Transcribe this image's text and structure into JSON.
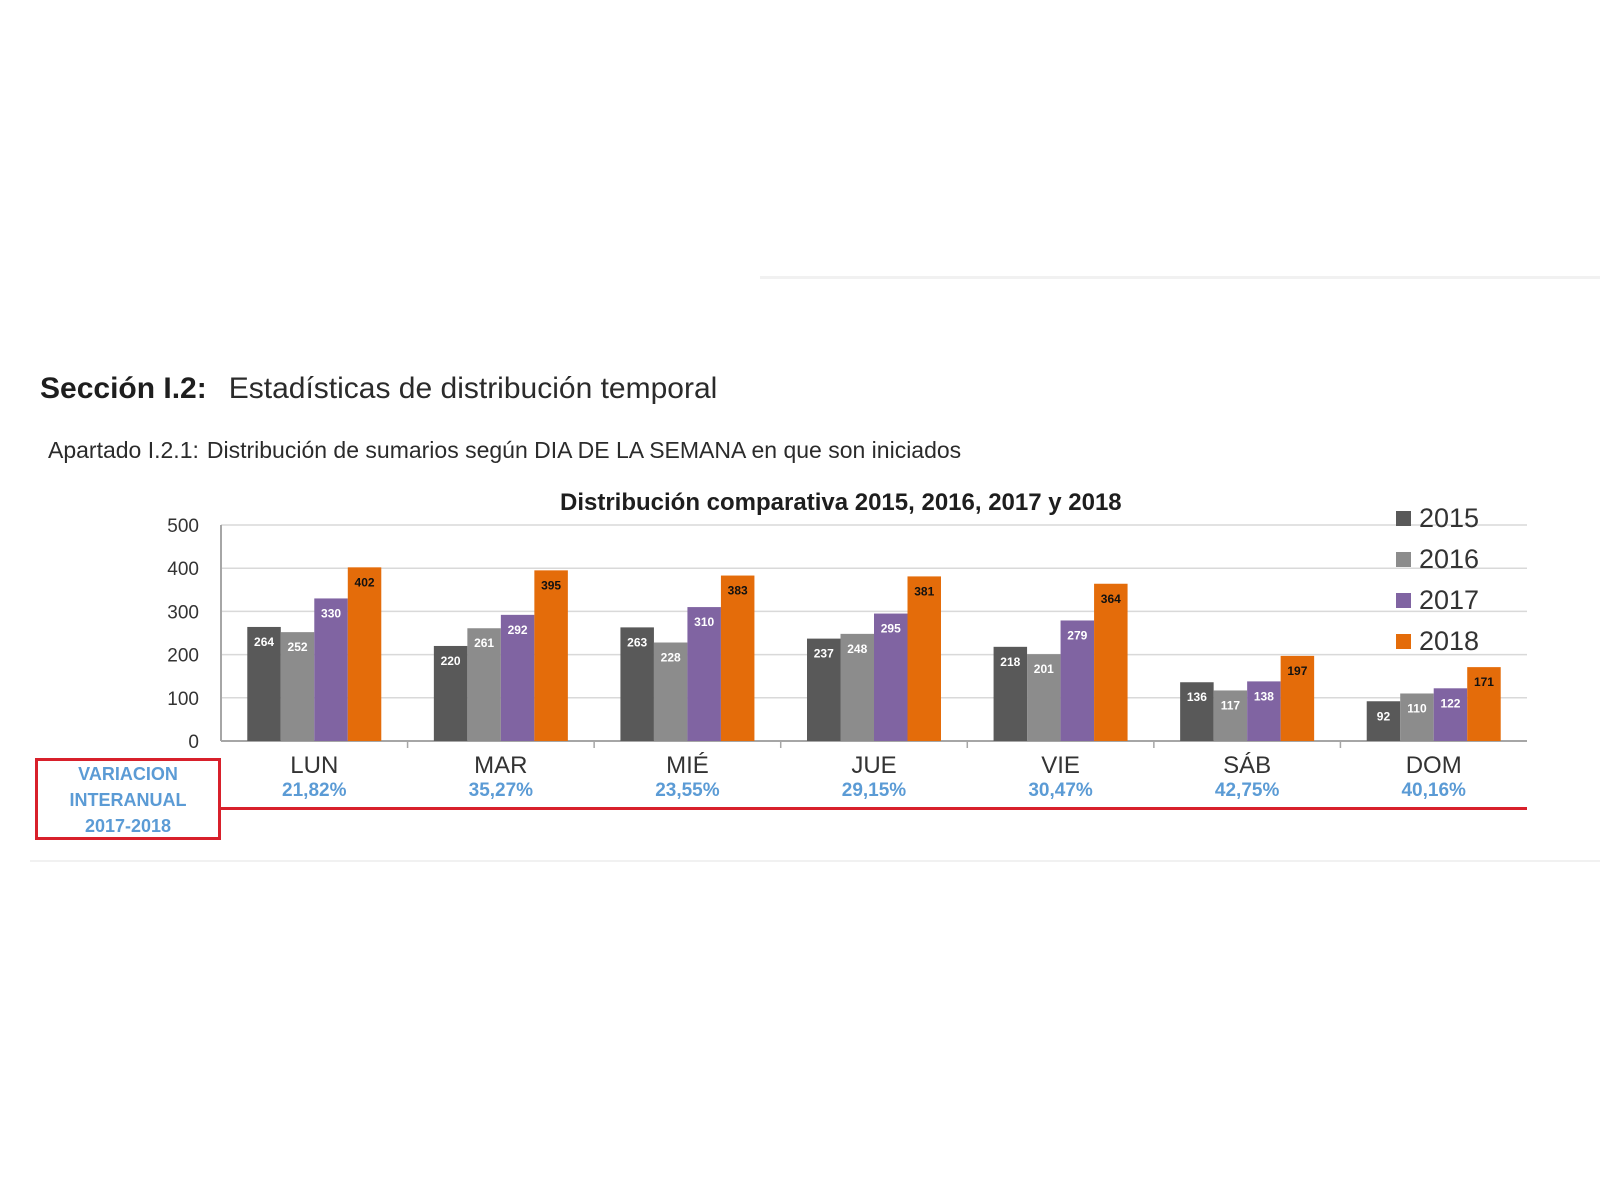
{
  "header": {
    "section_code": "Sección I.2:",
    "section_title": "Estadísticas de distribución temporal",
    "subsection_code": "Apartado I.2.1:",
    "subsection_title": "Distribución de sumarios según DIA DE LA SEMANA en que son iniciados"
  },
  "variation": {
    "line1": "VARIACION",
    "line2": "INTERANUAL",
    "line3": "2017-2018",
    "color": "#5b9bd5",
    "box_color": "#d8202b"
  },
  "chart_data": {
    "type": "bar",
    "title": "Distribución comparativa 2015, 2016, 2017 y 2018",
    "xlabel": "",
    "ylabel": "",
    "ylim": [
      0,
      500
    ],
    "yticks": [
      "0",
      "100",
      "200",
      "300",
      "400",
      "500"
    ],
    "grid": true,
    "legend_position": "right",
    "categories": [
      "LUN",
      "MAR",
      "MIÉ",
      "JUE",
      "VIE",
      "SÁB",
      "DOM"
    ],
    "category_variation": [
      "21,82%",
      "35,27%",
      "23,55%",
      "29,15%",
      "30,47%",
      "42,75%",
      "40,16%"
    ],
    "series": [
      {
        "name": "2015",
        "color": "#595959",
        "values": [
          264,
          220,
          263,
          237,
          218,
          136,
          92
        ]
      },
      {
        "name": "2016",
        "color": "#8c8c8c",
        "values": [
          252,
          261,
          228,
          248,
          201,
          117,
          110
        ]
      },
      {
        "name": "2017",
        "color": "#8064a2",
        "values": [
          330,
          292,
          310,
          295,
          279,
          138,
          122
        ]
      },
      {
        "name": "2018",
        "color": "#e46c0a",
        "values": [
          402,
          395,
          383,
          381,
          364,
          197,
          171
        ]
      }
    ]
  }
}
